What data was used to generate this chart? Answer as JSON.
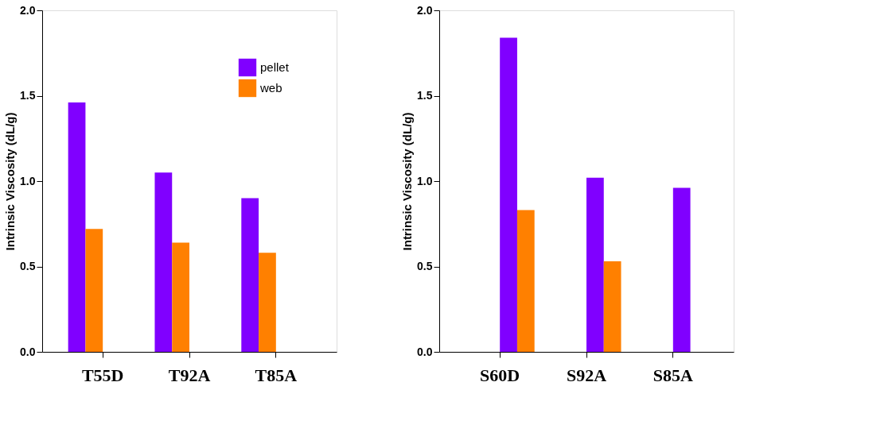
{
  "chart_data": [
    {
      "type": "bar",
      "categories": [
        "T55D",
        "T92A",
        "T85A"
      ],
      "ylabel": "Intrinsic Viscosity (dL/g)",
      "series": [
        {
          "name": "pellet",
          "color": "#8000ff",
          "values": [
            1.46,
            1.05,
            0.9
          ]
        },
        {
          "name": "web",
          "color": "#ff8000",
          "values": [
            0.72,
            0.64,
            0.58
          ]
        }
      ],
      "ylim": [
        0,
        2.0
      ],
      "yticks": [
        {
          "value": 0,
          "label": "0.0"
        },
        {
          "value": 0.5,
          "label": "0.5"
        },
        {
          "value": 1.0,
          "label": "1.0"
        },
        {
          "value": 1.5,
          "label": "1.5"
        },
        {
          "value": 2.0,
          "label": "2.0"
        }
      ],
      "grid": false,
      "legend": "top right"
    },
    {
      "type": "bar",
      "categories": [
        "S60D",
        "S92A",
        "S85A"
      ],
      "ylabel": "Intrinsic Viscosity (dL/g)",
      "series": [
        {
          "color": "#8000ff",
          "values": [
            1.84,
            1.02,
            0.96
          ]
        },
        {
          "color": "#ff8000",
          "values": [
            0.83,
            0.53,
            null
          ]
        }
      ],
      "ylim": [
        0,
        2.0
      ],
      "yticks": [
        {
          "value": 0,
          "label": "0.0"
        },
        {
          "value": 0.5,
          "label": "0.5"
        },
        {
          "value": 1.0,
          "label": "1.0"
        },
        {
          "value": 1.5,
          "label": "1.5"
        },
        {
          "value": 2.0,
          "label": "2.0"
        }
      ],
      "grid": false,
      "legend": false
    }
  ]
}
